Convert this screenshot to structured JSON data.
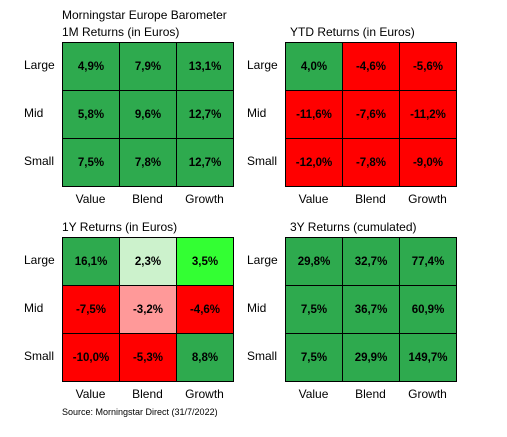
{
  "title": "Morningstar Europe Barometer",
  "source": "Source: Morningstar Direct (31/7/2022)",
  "colors": {
    "green": "#2eaa4e",
    "red": "#ff0000",
    "light_green": "#ccf2cc",
    "bright_green": "#33ff33",
    "pink": "#ff9999"
  },
  "chart_data": [
    {
      "type": "heatmap",
      "title": "1M Returns (in Euros)",
      "rows": [
        "Large",
        "Mid",
        "Small"
      ],
      "columns": [
        "Value",
        "Blend",
        "Growth"
      ],
      "values": [
        [
          "4,9%",
          "7,9%",
          "13,1%"
        ],
        [
          "5,8%",
          "9,6%",
          "12,7%"
        ],
        [
          "7,5%",
          "7,8%",
          "12,7%"
        ]
      ],
      "colors": [
        [
          "#2eaa4e",
          "#2eaa4e",
          "#2eaa4e"
        ],
        [
          "#2eaa4e",
          "#2eaa4e",
          "#2eaa4e"
        ],
        [
          "#2eaa4e",
          "#2eaa4e",
          "#2eaa4e"
        ]
      ]
    },
    {
      "type": "heatmap",
      "title": "YTD Returns (in Euros)",
      "rows": [
        "Large",
        "Mid",
        "Small"
      ],
      "columns": [
        "Value",
        "Blend",
        "Growth"
      ],
      "values": [
        [
          "4,0%",
          "-4,6%",
          "-5,6%"
        ],
        [
          "-11,6%",
          "-7,6%",
          "-11,2%"
        ],
        [
          "-12,0%",
          "-7,8%",
          "-9,0%"
        ]
      ],
      "colors": [
        [
          "#2eaa4e",
          "#ff0000",
          "#ff0000"
        ],
        [
          "#ff0000",
          "#ff0000",
          "#ff0000"
        ],
        [
          "#ff0000",
          "#ff0000",
          "#ff0000"
        ]
      ]
    },
    {
      "type": "heatmap",
      "title": "1Y Returns (in Euros)",
      "rows": [
        "Large",
        "Mid",
        "Small"
      ],
      "columns": [
        "Value",
        "Blend",
        "Growth"
      ],
      "values": [
        [
          "16,1%",
          "2,3%",
          "3,5%"
        ],
        [
          "-7,5%",
          "-3,2%",
          "-4,6%"
        ],
        [
          "-10,0%",
          "-5,3%",
          "8,8%"
        ]
      ],
      "colors": [
        [
          "#2eaa4e",
          "#ccf2cc",
          "#33ff33"
        ],
        [
          "#ff0000",
          "#ff9999",
          "#ff0000"
        ],
        [
          "#ff0000",
          "#ff0000",
          "#2eaa4e"
        ]
      ]
    },
    {
      "type": "heatmap",
      "title": "3Y Returns (cumulated)",
      "rows": [
        "Large",
        "Mid",
        "Small"
      ],
      "columns": [
        "Value",
        "Blend",
        "Growth"
      ],
      "values": [
        [
          "29,8%",
          "32,7%",
          "77,4%"
        ],
        [
          "7,5%",
          "36,7%",
          "60,9%"
        ],
        [
          "7,5%",
          "29,9%",
          "149,7%"
        ]
      ],
      "colors": [
        [
          "#2eaa4e",
          "#2eaa4e",
          "#2eaa4e"
        ],
        [
          "#2eaa4e",
          "#2eaa4e",
          "#2eaa4e"
        ],
        [
          "#2eaa4e",
          "#2eaa4e",
          "#2eaa4e"
        ]
      ]
    }
  ]
}
